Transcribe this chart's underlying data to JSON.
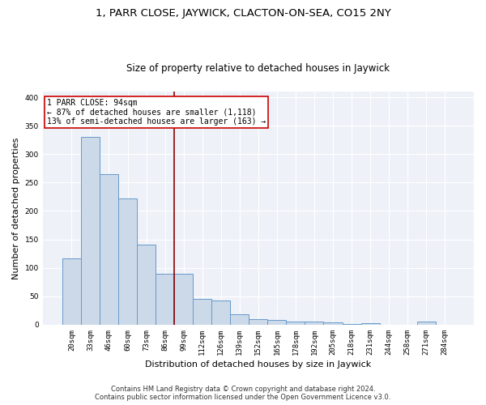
{
  "title": "1, PARR CLOSE, JAYWICK, CLACTON-ON-SEA, CO15 2NY",
  "subtitle": "Size of property relative to detached houses in Jaywick",
  "xlabel": "Distribution of detached houses by size in Jaywick",
  "ylabel": "Number of detached properties",
  "bar_labels": [
    "20sqm",
    "33sqm",
    "46sqm",
    "60sqm",
    "73sqm",
    "86sqm",
    "99sqm",
    "112sqm",
    "126sqm",
    "139sqm",
    "152sqm",
    "165sqm",
    "178sqm",
    "192sqm",
    "205sqm",
    "218sqm",
    "231sqm",
    "244sqm",
    "258sqm",
    "271sqm",
    "284sqm"
  ],
  "bar_values": [
    117,
    330,
    265,
    222,
    141,
    90,
    90,
    45,
    42,
    18,
    10,
    8,
    6,
    6,
    4,
    2,
    3,
    0,
    0,
    5,
    0
  ],
  "bar_color": "#ccd9e8",
  "bar_edge_color": "#6699cc",
  "vline_index": 6,
  "annotation_text": "1 PARR CLOSE: 94sqm\n← 87% of detached houses are smaller (1,118)\n13% of semi-detached houses are larger (163) →",
  "annotation_box_color": "white",
  "annotation_box_edge_color": "#cc0000",
  "vline_color": "#8b0000",
  "ylim": [
    0,
    410
  ],
  "yticks": [
    0,
    50,
    100,
    150,
    200,
    250,
    300,
    350,
    400
  ],
  "background_color": "#eef2f8",
  "grid_color": "white",
  "footer_line1": "Contains HM Land Registry data © Crown copyright and database right 2024.",
  "footer_line2": "Contains public sector information licensed under the Open Government Licence v3.0.",
  "title_fontsize": 9.5,
  "subtitle_fontsize": 8.5,
  "tick_fontsize": 6.5,
  "ylabel_fontsize": 8,
  "xlabel_fontsize": 8,
  "annotation_fontsize": 7,
  "footer_fontsize": 6
}
